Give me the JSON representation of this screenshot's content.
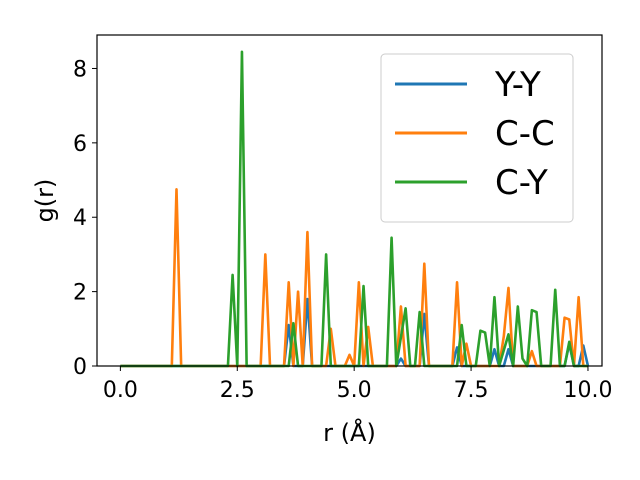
{
  "chart_data": {
    "type": "line",
    "xlabel": "r (Å)",
    "ylabel": "g(r)",
    "xlim": [
      -0.5,
      10.3
    ],
    "ylim": [
      0,
      8.9
    ],
    "xticks": [
      0.0,
      2.5,
      5.0,
      7.5,
      10.0
    ],
    "xtick_labels": [
      "0.0",
      "2.5",
      "5.0",
      "7.5",
      "10.0"
    ],
    "yticks": [
      0,
      2,
      4,
      6,
      8
    ],
    "ytick_labels": [
      "0",
      "2",
      "4",
      "6",
      "8"
    ],
    "grid": false,
    "legend_position": "top-right",
    "series": [
      {
        "name": "Y-Y",
        "color": "#1f77b4",
        "points": [
          [
            0,
            0
          ],
          [
            3.5,
            0
          ],
          [
            3.6,
            1.1
          ],
          [
            3.7,
            0
          ],
          [
            3.9,
            0
          ],
          [
            4.0,
            1.8
          ],
          [
            4.1,
            0
          ],
          [
            5.9,
            0
          ],
          [
            6.0,
            0.2
          ],
          [
            6.1,
            0
          ],
          [
            6.4,
            0
          ],
          [
            6.5,
            1.4
          ],
          [
            6.6,
            0
          ],
          [
            7.1,
            0
          ],
          [
            7.2,
            0.5
          ],
          [
            7.3,
            0
          ],
          [
            7.9,
            0
          ],
          [
            8.0,
            0.45
          ],
          [
            8.1,
            0
          ],
          [
            8.2,
            0
          ],
          [
            8.3,
            0.45
          ],
          [
            8.4,
            0
          ],
          [
            9.5,
            0
          ],
          [
            9.6,
            0.6
          ],
          [
            9.7,
            0
          ],
          [
            9.8,
            0
          ],
          [
            9.9,
            0.55
          ],
          [
            10.0,
            0
          ]
        ]
      },
      {
        "name": "C-C",
        "color": "#ff7f0e",
        "points": [
          [
            0,
            0
          ],
          [
            1.1,
            0
          ],
          [
            1.2,
            4.75
          ],
          [
            1.3,
            0
          ],
          [
            3.0,
            0
          ],
          [
            3.1,
            3.0
          ],
          [
            3.2,
            0
          ],
          [
            3.5,
            0
          ],
          [
            3.6,
            2.25
          ],
          [
            3.7,
            0
          ],
          [
            3.8,
            2.0
          ],
          [
            3.9,
            0
          ],
          [
            4.0,
            3.6
          ],
          [
            4.1,
            0
          ],
          [
            4.4,
            0
          ],
          [
            4.5,
            1.0
          ],
          [
            4.6,
            0
          ],
          [
            4.8,
            0
          ],
          [
            4.9,
            0.3
          ],
          [
            5.0,
            0
          ],
          [
            5.1,
            2.25
          ],
          [
            5.2,
            0
          ],
          [
            5.3,
            1.05
          ],
          [
            5.4,
            0
          ],
          [
            5.9,
            0
          ],
          [
            6.0,
            1.6
          ],
          [
            6.1,
            0
          ],
          [
            6.4,
            0
          ],
          [
            6.5,
            2.75
          ],
          [
            6.6,
            0
          ],
          [
            7.1,
            0
          ],
          [
            7.2,
            2.25
          ],
          [
            7.3,
            0
          ],
          [
            7.4,
            0.6
          ],
          [
            7.5,
            0
          ],
          [
            8.1,
            0
          ],
          [
            8.2,
            0.8
          ],
          [
            8.3,
            2.1
          ],
          [
            8.4,
            0
          ],
          [
            8.7,
            0
          ],
          [
            8.8,
            0.4
          ],
          [
            8.9,
            0
          ],
          [
            9.4,
            0
          ],
          [
            9.5,
            1.3
          ],
          [
            9.6,
            1.25
          ],
          [
            9.7,
            0
          ],
          [
            9.8,
            1.85
          ],
          [
            9.9,
            0
          ],
          [
            10.0,
            0
          ]
        ]
      },
      {
        "name": "C-Y",
        "color": "#2ca02c",
        "points": [
          [
            0,
            0
          ],
          [
            2.3,
            0
          ],
          [
            2.4,
            2.45
          ],
          [
            2.5,
            0
          ],
          [
            2.6,
            8.45
          ],
          [
            2.7,
            0
          ],
          [
            3.6,
            0
          ],
          [
            3.7,
            1.15
          ],
          [
            3.8,
            0
          ],
          [
            4.3,
            0
          ],
          [
            4.4,
            3.0
          ],
          [
            4.5,
            0
          ],
          [
            5.1,
            0
          ],
          [
            5.2,
            2.15
          ],
          [
            5.3,
            0
          ],
          [
            5.7,
            0
          ],
          [
            5.8,
            3.45
          ],
          [
            5.9,
            0
          ],
          [
            6.1,
            1.55
          ],
          [
            6.2,
            0
          ],
          [
            6.3,
            0
          ],
          [
            6.4,
            1.45
          ],
          [
            6.5,
            0
          ],
          [
            7.2,
            0
          ],
          [
            7.3,
            1.1
          ],
          [
            7.4,
            0
          ],
          [
            7.6,
            0
          ],
          [
            7.7,
            0.95
          ],
          [
            7.8,
            0.9
          ],
          [
            7.9,
            0
          ],
          [
            8.0,
            1.85
          ],
          [
            8.1,
            0
          ],
          [
            8.3,
            0.85
          ],
          [
            8.4,
            0
          ],
          [
            8.5,
            1.6
          ],
          [
            8.6,
            0.2
          ],
          [
            8.7,
            0
          ],
          [
            8.8,
            1.5
          ],
          [
            8.9,
            1.45
          ],
          [
            9.0,
            0
          ],
          [
            9.2,
            0
          ],
          [
            9.3,
            2.05
          ],
          [
            9.4,
            0
          ],
          [
            9.5,
            0
          ],
          [
            9.6,
            0.65
          ],
          [
            9.7,
            0
          ],
          [
            10.0,
            0
          ]
        ]
      }
    ]
  }
}
